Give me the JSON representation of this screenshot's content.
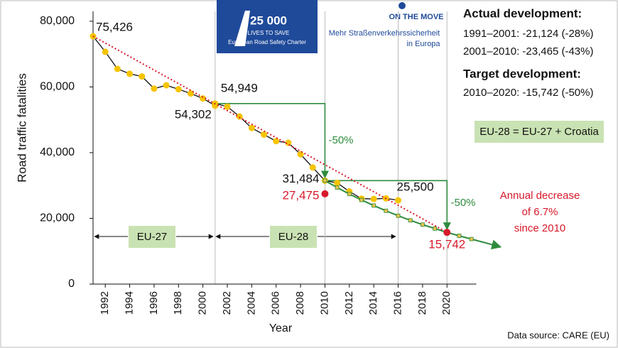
{
  "chart_data": {
    "type": "line",
    "y_label": "Road traffic fatalities",
    "x_label": "Year",
    "xlim": [
      1991,
      2022.4
    ],
    "ylim": [
      0,
      83000
    ],
    "xticks": [
      1992,
      1994,
      1996,
      1998,
      2000,
      2002,
      2004,
      2006,
      2008,
      2010,
      2012,
      2014,
      2016,
      2018,
      2020
    ],
    "yticks": [
      0,
      {
        "value": 20000,
        "label": "20,000"
      },
      {
        "value": 40000,
        "label": "40,000"
      },
      {
        "value": 60000,
        "label": "60,000"
      },
      {
        "value": 80000,
        "label": "80,000"
      }
    ],
    "series": [
      {
        "color": "#111111",
        "marker_color": "#f5c400",
        "x": [
          1991,
          1992,
          1993,
          1994,
          1995,
          1996,
          1997,
          1998,
          1999,
          2000,
          2001
        ],
        "values": [
          75426,
          70700,
          65500,
          64000,
          63200,
          59500,
          60500,
          59300,
          58000,
          56500,
          54302
        ],
        "value_labels": [
          "75,426",
          null,
          null,
          null,
          null,
          null,
          null,
          null,
          null,
          null,
          "54,302"
        ]
      },
      {
        "color": "#111111",
        "marker_color": "#f5c400",
        "x": [
          2001,
          2002,
          2003,
          2004,
          2005,
          2006,
          2007,
          2008,
          2009,
          2010,
          2011,
          2012,
          2013,
          2014,
          2015,
          2016
        ],
        "values": [
          54949,
          54000,
          51000,
          47500,
          45500,
          43500,
          43000,
          39500,
          35500,
          31484,
          30800,
          28200,
          26000,
          25900,
          26100,
          25500
        ],
        "value_labels": [
          "54,949",
          null,
          null,
          null,
          null,
          null,
          null,
          null,
          null,
          "31,484",
          null,
          null,
          null,
          null,
          null,
          "25,500"
        ]
      },
      {
        "color": "#2e8b3e",
        "marker_color": "#e8c34a",
        "x": [
          2010,
          2011,
          2012,
          2013,
          2014,
          2015,
          2016,
          2017,
          2018,
          2019,
          2020,
          2021,
          2022
        ],
        "values": [
          31484,
          29400,
          27400,
          25600,
          23900,
          22300,
          20800,
          19400,
          18100,
          16900,
          15742,
          14700,
          13700
        ]
      },
      {
        "color": "#d7192a",
        "x": [
          1991,
          2020
        ],
        "values": [
          75426,
          15742
        ]
      },
      {
        "color": "#d7192a",
        "x": [
          2010,
          2020
        ],
        "values": [
          27475,
          15742
        ],
        "value_labels": [
          "27,475",
          "15,742"
        ]
      }
    ],
    "step_color": "#2e8b3e",
    "step_labels": [
      "-50%",
      "-50%"
    ],
    "periods": [
      "EU-27",
      "EU-28"
    ],
    "annotation": [
      "Annual decrease",
      "of 6.7%",
      "since 2010"
    ],
    "info": {
      "actual_title": "Actual development:",
      "actual_lines": [
        "1991–2001: -21,124 (-28%)",
        "2001–2010: -23,465 (-43%)"
      ],
      "target_title": "Target development:",
      "target_line": "2010–2020: -15,742 (-50%)",
      "note": "EU-28 = EU-27 + Croatia"
    },
    "logo1": [
      "25 000",
      "LIVES TO SAVE",
      "European Road Safety Charter"
    ],
    "logo2": [
      "ON THE MOVE",
      "Mehr Straßenverkehrssicherheit",
      "in Europa"
    ],
    "source": "Data source: CARE (EU)"
  }
}
